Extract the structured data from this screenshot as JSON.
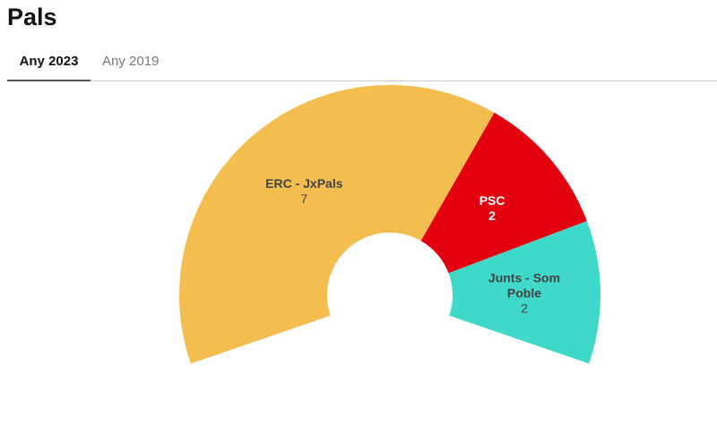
{
  "header": {
    "title": "Pals"
  },
  "tabs": [
    "Any 2023",
    "Any 2019"
  ],
  "chart_data": {
    "type": "semi-donut",
    "categories": [
      "ERC - JxPals",
      "PSC",
      "Junts - Som Poble"
    ],
    "values": [
      7,
      2,
      2
    ],
    "colors": [
      "#f4bd4f",
      "#e3000f",
      "#40d9c9"
    ]
  }
}
